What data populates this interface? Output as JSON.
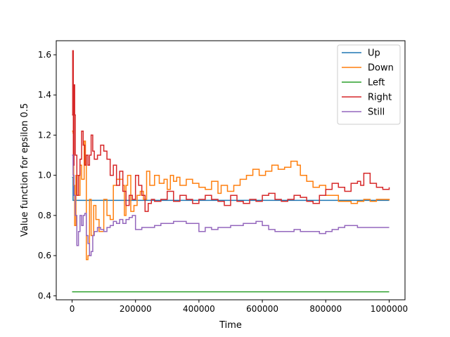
{
  "chart_data": {
    "type": "line",
    "title": "",
    "xlabel": "Time",
    "ylabel": "Value function for epsilon 0.5",
    "xlim": [
      -50000,
      1050000
    ],
    "ylim": [
      0.38,
      1.67
    ],
    "xticks": [
      0,
      200000,
      400000,
      600000,
      800000,
      1000000
    ],
    "xtick_labels": [
      "0",
      "200000",
      "400000",
      "600000",
      "800000",
      "1000000"
    ],
    "yticks": [
      0.4,
      0.6,
      0.8,
      1.0,
      1.2,
      1.4,
      1.6
    ],
    "ytick_labels": [
      "0.4",
      "0.6",
      "0.8",
      "1.0",
      "1.2",
      "1.4",
      "1.6"
    ],
    "grid": false,
    "legend_position": "top-right",
    "series": [
      {
        "name": "Up",
        "color": "#1f77b4",
        "x": [
          0,
          2000,
          3000,
          10000,
          1000000
        ],
        "y": [
          0.99,
          0.99,
          0.875,
          0.875,
          0.875
        ]
      },
      {
        "name": "Down",
        "color": "#ff7f0e",
        "x": [
          0,
          3000,
          5000,
          8000,
          12000,
          20000,
          25000,
          30000,
          38000,
          42000,
          45000,
          50000,
          55000,
          60000,
          68000,
          75000,
          85000,
          95000,
          100000,
          110000,
          120000,
          130000,
          140000,
          150000,
          160000,
          165000,
          170000,
          175000,
          185000,
          195000,
          205000,
          215000,
          225000,
          235000,
          245000,
          260000,
          275000,
          290000,
          300000,
          310000,
          320000,
          330000,
          340000,
          360000,
          380000,
          400000,
          420000,
          440000,
          460000,
          470000,
          490000,
          510000,
          530000,
          550000,
          570000,
          590000,
          610000,
          630000,
          650000,
          670000,
          690000,
          710000,
          720000,
          740000,
          760000,
          780000,
          800000,
          820000,
          840000,
          860000,
          880000,
          900000,
          920000,
          940000,
          960000,
          980000,
          1000000
        ],
        "y": [
          1.22,
          1.21,
          0.95,
          0.75,
          1.0,
          0.9,
          1.05,
          0.98,
          1.17,
          1.05,
          0.58,
          0.6,
          0.88,
          0.7,
          0.85,
          0.78,
          0.72,
          0.72,
          0.88,
          0.8,
          0.78,
          0.95,
          0.98,
          0.98,
          0.95,
          0.8,
          0.95,
          1.0,
          0.82,
          0.85,
          0.9,
          0.92,
          0.88,
          1.02,
          0.95,
          1.0,
          0.96,
          0.98,
          0.93,
          1.0,
          0.97,
          0.99,
          0.95,
          0.98,
          0.96,
          0.94,
          0.93,
          0.97,
          0.91,
          0.95,
          0.92,
          0.95,
          0.98,
          1.0,
          1.03,
          1.0,
          1.02,
          1.05,
          1.03,
          1.04,
          1.07,
          1.05,
          1.0,
          0.97,
          0.94,
          0.95,
          0.9,
          0.9,
          0.87,
          0.87,
          0.86,
          0.87,
          0.88,
          0.87,
          0.88,
          0.88,
          0.875
        ]
      },
      {
        "name": "Left",
        "color": "#2ca02c",
        "x": [
          0,
          1000000
        ],
        "y": [
          0.42,
          0.42
        ]
      },
      {
        "name": "Right",
        "color": "#d62728",
        "x": [
          0,
          2000,
          4000,
          6000,
          8000,
          10000,
          15000,
          20000,
          25000,
          30000,
          35000,
          40000,
          45000,
          50000,
          55000,
          60000,
          65000,
          70000,
          80000,
          90000,
          100000,
          110000,
          120000,
          130000,
          140000,
          150000,
          160000,
          170000,
          180000,
          190000,
          200000,
          210000,
          220000,
          230000,
          240000,
          250000,
          260000,
          280000,
          300000,
          320000,
          340000,
          360000,
          380000,
          400000,
          420000,
          440000,
          460000,
          480000,
          500000,
          520000,
          540000,
          560000,
          580000,
          600000,
          620000,
          640000,
          660000,
          680000,
          700000,
          720000,
          740000,
          760000,
          780000,
          800000,
          820000,
          840000,
          860000,
          880000,
          900000,
          910000,
          920000,
          940000,
          960000,
          980000,
          1000000
        ],
        "y": [
          1.3,
          1.62,
          1.05,
          1.45,
          1.3,
          1.1,
          0.9,
          1.0,
          1.08,
          1.22,
          1.15,
          1.05,
          1.1,
          1.05,
          1.1,
          1.2,
          1.12,
          1.08,
          1.1,
          1.15,
          1.12,
          1.08,
          1.0,
          1.05,
          0.95,
          1.02,
          0.92,
          0.85,
          0.9,
          0.88,
          1.0,
          0.95,
          0.9,
          0.82,
          0.86,
          0.88,
          0.87,
          0.88,
          0.92,
          0.87,
          0.9,
          0.88,
          0.86,
          0.88,
          0.9,
          0.88,
          0.87,
          0.85,
          0.9,
          0.87,
          0.86,
          0.88,
          0.87,
          0.9,
          0.91,
          0.88,
          0.87,
          0.88,
          0.9,
          0.89,
          0.87,
          0.86,
          0.9,
          0.93,
          0.96,
          0.94,
          0.92,
          0.96,
          0.97,
          0.95,
          1.01,
          0.96,
          0.94,
          0.93,
          0.94
        ]
      },
      {
        "name": "Still",
        "color": "#9467bd",
        "x": [
          0,
          3000,
          6000,
          10000,
          15000,
          20000,
          25000,
          30000,
          35000,
          40000,
          45000,
          50000,
          55000,
          60000,
          65000,
          70000,
          80000,
          90000,
          100000,
          110000,
          120000,
          130000,
          140000,
          150000,
          160000,
          170000,
          180000,
          190000,
          200000,
          220000,
          240000,
          260000,
          280000,
          300000,
          320000,
          340000,
          360000,
          380000,
          400000,
          420000,
          440000,
          460000,
          480000,
          500000,
          520000,
          540000,
          560000,
          580000,
          600000,
          620000,
          640000,
          660000,
          680000,
          700000,
          720000,
          740000,
          760000,
          780000,
          800000,
          820000,
          840000,
          860000,
          880000,
          900000,
          920000,
          940000,
          960000,
          980000,
          1000000
        ],
        "y": [
          1.1,
          1.0,
          0.9,
          0.8,
          0.65,
          0.72,
          0.8,
          0.75,
          0.8,
          0.81,
          0.7,
          0.66,
          0.6,
          0.62,
          0.7,
          0.72,
          0.74,
          0.73,
          0.72,
          0.74,
          0.75,
          0.77,
          0.76,
          0.78,
          0.76,
          0.78,
          0.79,
          0.8,
          0.73,
          0.74,
          0.74,
          0.75,
          0.76,
          0.76,
          0.77,
          0.77,
          0.76,
          0.76,
          0.72,
          0.74,
          0.73,
          0.74,
          0.74,
          0.75,
          0.75,
          0.76,
          0.76,
          0.77,
          0.75,
          0.73,
          0.72,
          0.72,
          0.72,
          0.73,
          0.72,
          0.72,
          0.72,
          0.71,
          0.72,
          0.73,
          0.74,
          0.75,
          0.75,
          0.74,
          0.74,
          0.74,
          0.74,
          0.74,
          0.74
        ]
      }
    ]
  }
}
